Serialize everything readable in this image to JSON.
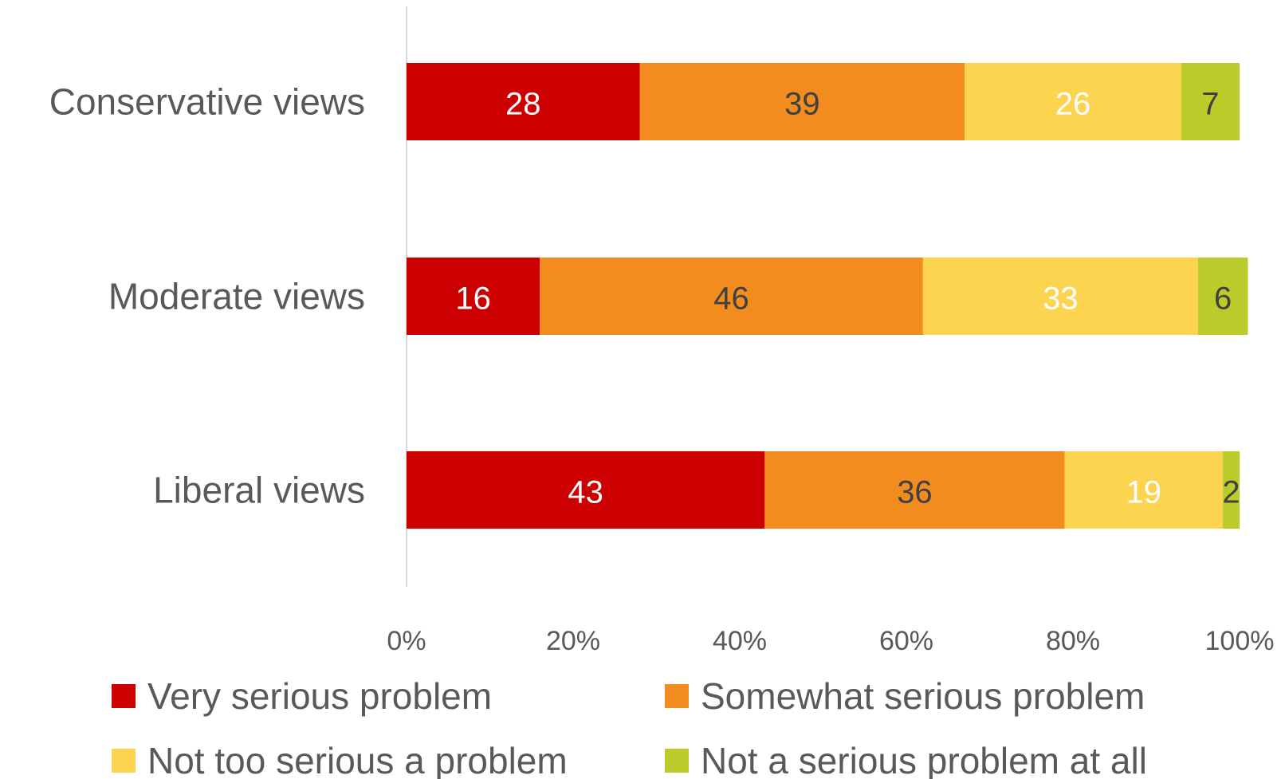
{
  "chart_data": {
    "type": "bar",
    "orientation": "horizontal",
    "stacked": true,
    "categories": [
      "Conservative views",
      "Moderate views",
      "Liberal views"
    ],
    "series": [
      {
        "name": "Very serious problem",
        "color": "#CC0000",
        "label_color": "#FFFFFF",
        "values": [
          28,
          16,
          43
        ]
      },
      {
        "name": "Somewhat serious problem",
        "color": "#F28C1F",
        "label_color": "#404040",
        "values": [
          39,
          46,
          36
        ]
      },
      {
        "name": "Not too serious a problem",
        "color": "#FDD44F",
        "label_color": "#FFFFFF",
        "values": [
          26,
          33,
          19
        ]
      },
      {
        "name": "Not a serious problem at all",
        "color": "#BACB2A",
        "label_color": "#404040",
        "values": [
          7,
          6,
          2
        ]
      }
    ],
    "xlim": [
      0,
      100
    ],
    "xticks": [
      "0%",
      "20%",
      "40%",
      "60%",
      "80%",
      "100%"
    ],
    "grid": false,
    "legend_position": "bottom"
  }
}
